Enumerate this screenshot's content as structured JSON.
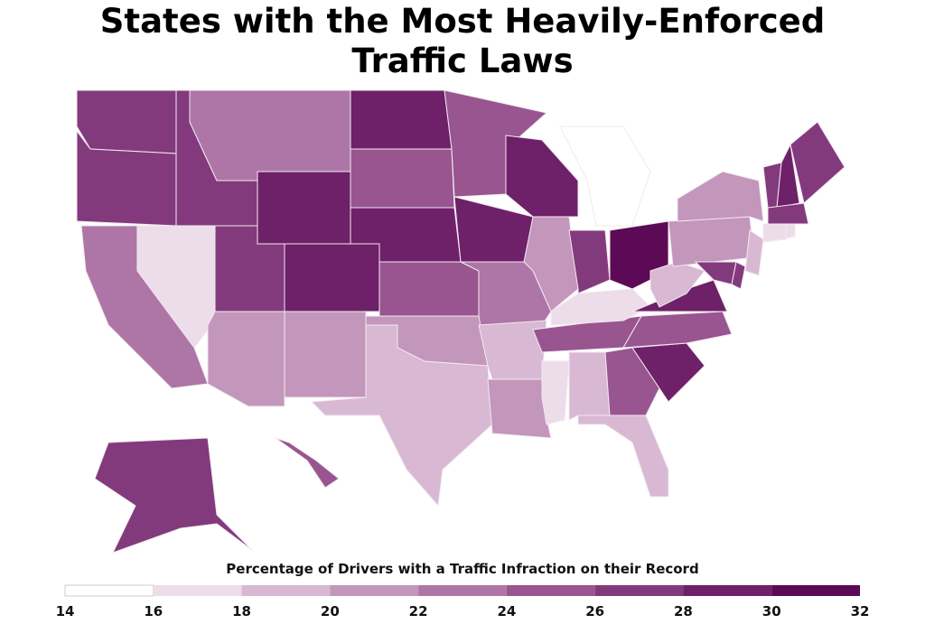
{
  "chart_data": {
    "type": "choropleth",
    "title": "States with the Most Heavily-Enforced Traffic Laws",
    "legend_title": "Percentage of Drivers with a Traffic Infraction on their Record",
    "legend_ticks": [
      14,
      16,
      18,
      20,
      22,
      24,
      26,
      28,
      30,
      32
    ],
    "colors": [
      "#ffffff",
      "#eddcea",
      "#d8b8d2",
      "#c396bc",
      "#ad76a6",
      "#985590",
      "#833a7d",
      "#6e2068",
      "#5c0a55"
    ],
    "values": [
      27,
      27,
      27,
      23,
      29,
      25,
      29,
      29,
      25,
      29,
      29,
      21,
      15,
      27,
      31,
      17,
      23,
      27,
      29,
      25,
      23,
      21,
      21,
      19,
      21,
      19,
      21,
      17,
      19,
      25,
      17,
      25,
      19,
      29,
      25,
      29,
      19,
      21,
      21,
      27,
      27,
      19,
      27,
      29,
      27,
      27,
      17,
      17,
      27,
      25
    ]
  }
}
